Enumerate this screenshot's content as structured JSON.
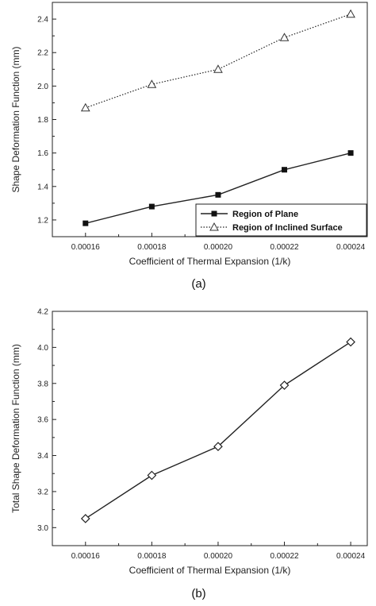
{
  "chart_data": [
    {
      "type": "line",
      "caption": "(a)",
      "xlabel": "Coefficient of Thermal Expansion (1/k)",
      "ylabel": "Shape Deformation Function (mm)",
      "x": [
        0.00016,
        0.00018,
        0.0002,
        0.00022,
        0.00024
      ],
      "x_tick_labels": [
        "0.00016",
        "0.00018",
        "0.00020",
        "0.00022",
        "0.00024"
      ],
      "xlim": [
        0.00015,
        0.000245
      ],
      "ylim": [
        1.1,
        2.5
      ],
      "y_ticks": [
        1.2,
        1.4,
        1.6,
        1.8,
        2.0,
        2.2,
        2.4
      ],
      "y_tick_labels": [
        "1.2",
        "1.4",
        "1.6",
        "1.8",
        "2.0",
        "2.2",
        "2.4"
      ],
      "legend_position": "bottom-right",
      "series": [
        {
          "name": "Region of Plane",
          "marker": "filled-square",
          "line": "solid",
          "values": [
            1.18,
            1.28,
            1.35,
            1.5,
            1.6
          ]
        },
        {
          "name": "Region of Inclined Surface",
          "marker": "open-triangle",
          "line": "dotted",
          "values": [
            1.87,
            2.01,
            2.1,
            2.29,
            2.43
          ]
        }
      ]
    },
    {
      "type": "line",
      "caption": "(b)",
      "xlabel": "Coefficient of Thermal Expansion (1/k)",
      "ylabel": "Total Shape Deformation Function (mm)",
      "x": [
        0.00016,
        0.00018,
        0.0002,
        0.00022,
        0.00024
      ],
      "x_tick_labels": [
        "0.00016",
        "0.00018",
        "0.00020",
        "0.00022",
        "0.00024"
      ],
      "xlim": [
        0.00015,
        0.000245
      ],
      "ylim": [
        2.9,
        4.2
      ],
      "y_ticks": [
        3.0,
        3.2,
        3.4,
        3.6,
        3.8,
        4.0,
        4.2
      ],
      "y_tick_labels": [
        "3.0",
        "3.2",
        "3.4",
        "3.6",
        "3.8",
        "4.0",
        "4.2"
      ],
      "series": [
        {
          "marker": "open-diamond",
          "line": "solid",
          "values": [
            3.05,
            3.29,
            3.45,
            3.79,
            4.03
          ]
        }
      ]
    }
  ]
}
